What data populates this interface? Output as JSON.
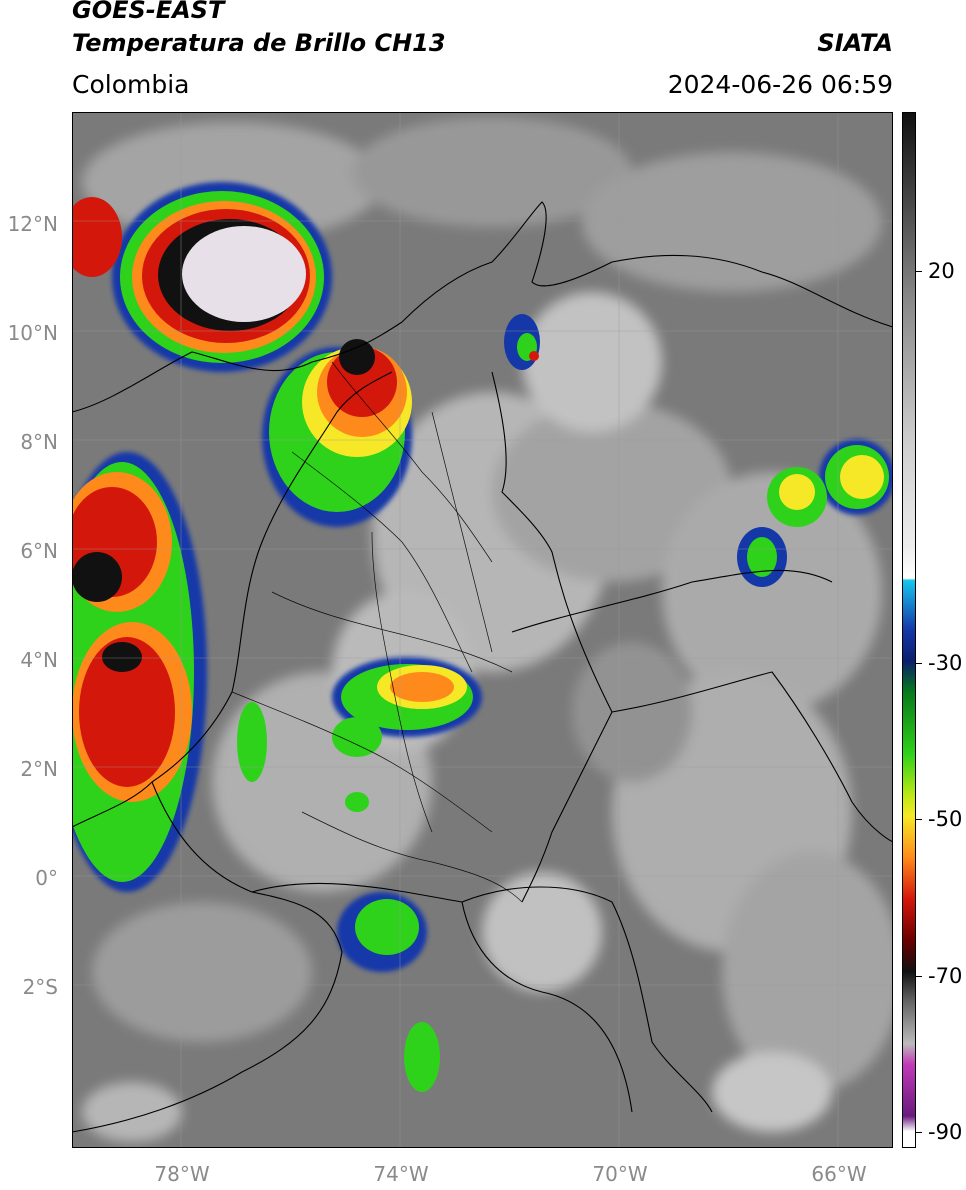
{
  "header": {
    "satellite": "GOES-EAST",
    "product": "Temperatura de Brillo CH13",
    "region": "Colombia",
    "institution": "SIATA",
    "datetime": "2024-06-26 06:59"
  },
  "map": {
    "lat_labels": [
      "12°N",
      "10°N",
      "8°N",
      "6°N",
      "4°N",
      "2°N",
      "0°",
      "2°S"
    ],
    "lat_values": [
      12,
      10,
      8,
      6,
      4,
      2,
      0,
      -2
    ],
    "lon_labels": [
      "78°W",
      "74°W",
      "70°W",
      "66°W"
    ],
    "lon_values": [
      -78,
      -74,
      -70,
      -66
    ],
    "extent": {
      "lon_min": -80,
      "lon_max": -65,
      "lat_min": -5,
      "lat_max": 14
    }
  },
  "colorbar": {
    "labels": [
      "20",
      "-30",
      "-50",
      "-70",
      "-90"
    ],
    "values": [
      20,
      -30,
      -50,
      -70,
      -90
    ],
    "range": [
      -92,
      35
    ],
    "unit": ""
  },
  "colors": {
    "cold_core": "#e8e0e8",
    "black": "#111111",
    "red": "#d4170b",
    "orange": "#ff8a1c",
    "yellow": "#f6e826",
    "green": "#2fd21a",
    "dark_green": "#087a1c",
    "blue": "#1438a8",
    "cyan": "#16c6ee",
    "magenta": "#c23ab8",
    "purple": "#6a1a7e"
  }
}
